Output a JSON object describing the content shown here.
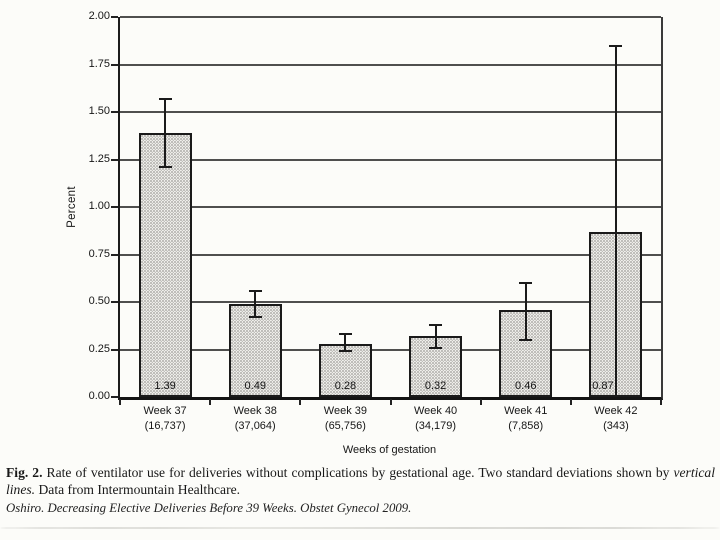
{
  "figure": {
    "caption": {
      "fig_label": "Fig. 2.",
      "body_regular_1": " Rate of ventilator use for deliveries without complications by gestational age. Two standard deviations shown by ",
      "body_italic": "vertical lines.",
      "body_regular_2": " Data from Intermountain Healthcare."
    },
    "citation": "Oshiro. Decreasing Elective Deliveries Before 39 Weeks. Obstet Gynecol 2009."
  },
  "chart_data": {
    "type": "bar",
    "title": "",
    "xlabel": "Weeks of gestation",
    "ylabel": "Percent",
    "ylim": [
      0,
      2.0
    ],
    "ytick_step": 0.25,
    "yticks": [
      "0.00",
      "0.25",
      "0.50",
      "0.75",
      "1.00",
      "1.25",
      "1.50",
      "1.75",
      "2.00"
    ],
    "grid": true,
    "legend": null,
    "categories": [
      "Week 37",
      "Week 38",
      "Week 39",
      "Week 40",
      "Week 41",
      "Week 42"
    ],
    "sample_sizes": [
      "(16,737)",
      "(37,064)",
      "(65,756)",
      "(34,179)",
      "(7,858)",
      "(343)"
    ],
    "values": [
      1.39,
      0.49,
      0.28,
      0.32,
      0.46,
      0.87
    ],
    "value_labels": [
      "1.39",
      "0.49",
      "0.28",
      "0.32",
      "0.46",
      "0.87"
    ],
    "error_bars": {
      "description": "two standard deviations shown by vertical lines",
      "low": [
        1.21,
        0.42,
        0.24,
        0.26,
        0.3,
        0.0
      ],
      "high": [
        1.57,
        0.56,
        0.33,
        0.38,
        0.6,
        1.85
      ]
    },
    "colors": {
      "bar_fill": "#f1f0ed",
      "bar_stipple": "#8e8e88",
      "bar_border": "#1a1a1a",
      "grid_line": "#333333",
      "axis_line": "#1c1c1c",
      "text": "#1d1d1d",
      "background": "#fcfcf9"
    }
  }
}
